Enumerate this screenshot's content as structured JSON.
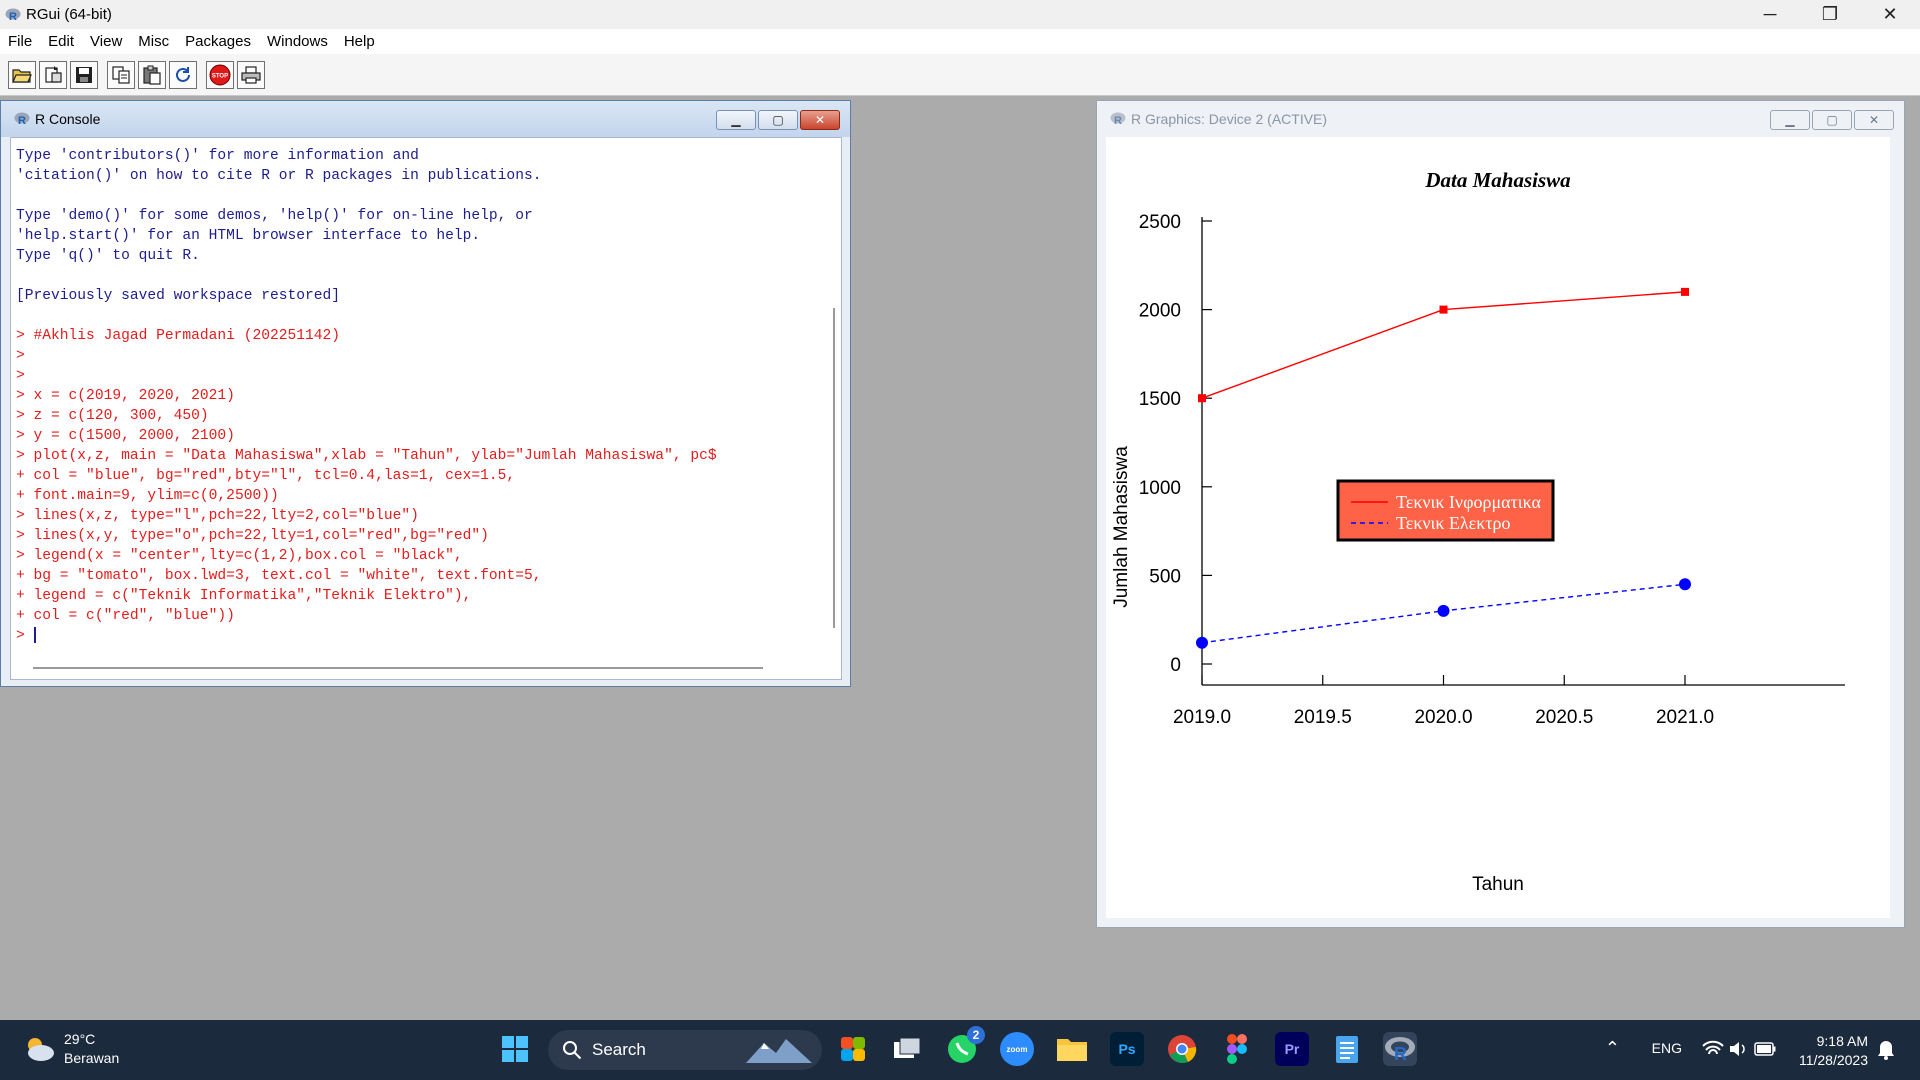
{
  "app": {
    "title": "RGui (64-bit)",
    "window_controls": [
      "─",
      "❐",
      "✕"
    ]
  },
  "menu": [
    "File",
    "Edit",
    "View",
    "Misc",
    "Packages",
    "Windows",
    "Help"
  ],
  "toolbar": [
    "open-script-icon",
    "load-workspace-icon",
    "save-icon",
    "copy-icon",
    "paste-icon",
    "copy-paste-icon",
    "stop-icon",
    "print-icon"
  ],
  "console": {
    "title": "R Console",
    "lines": [
      {
        "t": "Type 'contributors()' for more information and",
        "k": "out"
      },
      {
        "t": "'citation()' on how to cite R or R packages in publications.",
        "k": "out"
      },
      {
        "t": "",
        "k": "out"
      },
      {
        "t": "Type 'demo()' for some demos, 'help()' for on-line help, or",
        "k": "out"
      },
      {
        "t": "'help.start()' for an HTML browser interface to help.",
        "k": "out"
      },
      {
        "t": "Type 'q()' to quit R.",
        "k": "out"
      },
      {
        "t": "",
        "k": "out"
      },
      {
        "t": "[Previously saved workspace restored]",
        "k": "out"
      },
      {
        "t": "",
        "k": "out"
      },
      {
        "t": "> #Akhlis Jagad Permadani (202251142)",
        "k": "cmd"
      },
      {
        "t": ">",
        "k": "cmd"
      },
      {
        "t": ">",
        "k": "cmd"
      },
      {
        "t": "> x = c(2019, 2020, 2021)",
        "k": "cmd"
      },
      {
        "t": "> z = c(120, 300, 450)",
        "k": "cmd"
      },
      {
        "t": "> y = c(1500, 2000, 2100)",
        "k": "cmd"
      },
      {
        "t": "> plot(x,z, main = \"Data Mahasiswa\",xlab = \"Tahun\", ylab=\"Jumlah Mahasiswa\", pc$",
        "k": "cmd"
      },
      {
        "t": "+ col = \"blue\", bg=\"red\",bty=\"l\", tcl=0.4,las=1, cex=1.5,",
        "k": "cmd"
      },
      {
        "t": "+ font.main=9, ylim=c(0,2500))",
        "k": "cmd"
      },
      {
        "t": "> lines(x,z, type=\"l\",pch=22,lty=2,col=\"blue\")",
        "k": "cmd"
      },
      {
        "t": "> lines(x,y, type=\"o\",pch=22,lty=1,col=\"red\",bg=\"red\")",
        "k": "cmd"
      },
      {
        "t": "> legend(x = \"center\",lty=c(1,2),box.col = \"black\",",
        "k": "cmd"
      },
      {
        "t": "+ bg = \"tomato\", box.lwd=3, text.col = \"white\", text.font=5,",
        "k": "cmd"
      },
      {
        "t": "+ legend = c(\"Teknik Informatika\",\"Teknik Elektro\"),",
        "k": "cmd"
      },
      {
        "t": "+ col = c(\"red\", \"blue\"))",
        "k": "cmd"
      },
      {
        "t": "> ",
        "k": "prompt"
      }
    ]
  },
  "graphics": {
    "title": "R Graphics: Device 2 (ACTIVE)"
  },
  "chart_data": {
    "type": "line",
    "title": "Data Mahasiswa",
    "xlabel": "Tahun",
    "ylabel": "Jumlah Mahasiswa",
    "x": [
      2019,
      2020,
      2021
    ],
    "x_ticks": [
      "2019.0",
      "2019.5",
      "2020.0",
      "2020.5",
      "2021.0"
    ],
    "y_ticks": [
      "0",
      "500",
      "1000",
      "1500",
      "2000",
      "2500"
    ],
    "xlim": [
      2019,
      2021
    ],
    "ylim": [
      0,
      2500
    ],
    "series": [
      {
        "values": [
          1500,
          2000,
          2100
        ],
        "color": "#ff0000",
        "line": "solid",
        "marker": "square"
      },
      {
        "values": [
          120,
          300,
          450
        ],
        "color": "#0000ff",
        "line": "dashed",
        "marker": "circle"
      }
    ],
    "legend": {
      "position": "center",
      "background": "#ff6347",
      "text_color": "#ffffff",
      "entries": [
        {
          "label": "Τεκνικ Ινφορματικα",
          "color": "#ff0000",
          "line": "solid"
        },
        {
          "label": "Τεκνικ Ελεκτρο",
          "color": "#0000ff",
          "line": "dashed"
        }
      ]
    },
    "grid": false
  },
  "taskbar": {
    "weather_temp": "29°C",
    "weather_desc": "Berawan",
    "search_label": "Search",
    "whatsapp_badge": "2",
    "zoom_label": "zoom",
    "photoshop_label": "Ps",
    "premiere_label": "Pr",
    "language": "ENG",
    "time": "9:18 AM",
    "date": "11/28/2023"
  }
}
